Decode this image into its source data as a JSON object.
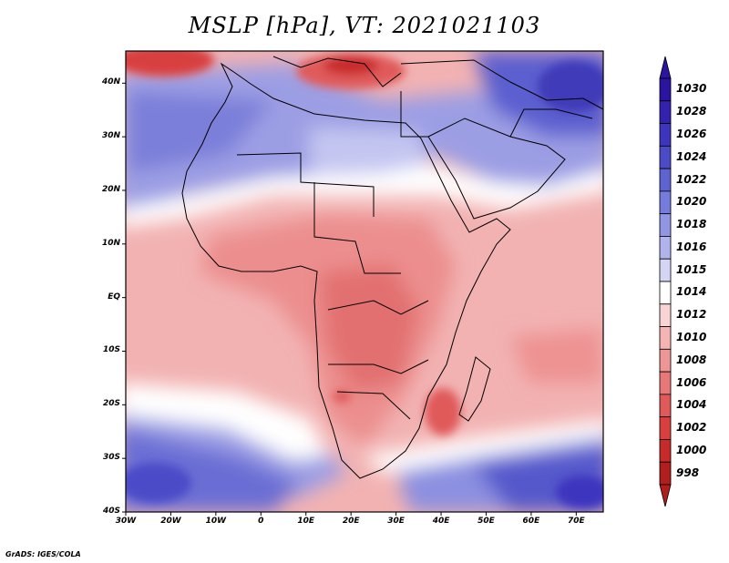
{
  "title": "MSLP [hPa], VT: 2021021103",
  "credit": "GrADS: IGES/COLA",
  "map": {
    "region": "Africa and Middle East",
    "lon_range": [
      -30,
      76
    ],
    "lat_range": [
      -40,
      46
    ],
    "lat_ticks": [
      {
        "label": "40N",
        "lat": 40
      },
      {
        "label": "30N",
        "lat": 30
      },
      {
        "label": "20N",
        "lat": 20
      },
      {
        "label": "10N",
        "lat": 10
      },
      {
        "label": "EQ",
        "lat": 0
      },
      {
        "label": "10S",
        "lat": -10
      },
      {
        "label": "20S",
        "lat": -20
      },
      {
        "label": "30S",
        "lat": -30
      },
      {
        "label": "40S",
        "lat": -40
      }
    ],
    "lon_ticks": [
      {
        "label": "30W",
        "lon": -30
      },
      {
        "label": "20W",
        "lon": -20
      },
      {
        "label": "10W",
        "lon": -10
      },
      {
        "label": "0",
        "lon": 0
      },
      {
        "label": "10E",
        "lon": 10
      },
      {
        "label": "20E",
        "lon": 20
      },
      {
        "label": "30E",
        "lon": 30
      },
      {
        "label": "40E",
        "lon": 40
      },
      {
        "label": "50E",
        "lon": 50
      },
      {
        "label": "60E",
        "lon": 60
      },
      {
        "label": "70E",
        "lon": 70
      }
    ]
  },
  "colorbar": {
    "levels": [
      {
        "label": "1030",
        "color": "#2a14a0"
      },
      {
        "label": "1028",
        "color": "#3321b0"
      },
      {
        "label": "1026",
        "color": "#3d35be"
      },
      {
        "label": "1024",
        "color": "#4b4bc8"
      },
      {
        "label": "1022",
        "color": "#5e63d2"
      },
      {
        "label": "1020",
        "color": "#767cdc"
      },
      {
        "label": "1018",
        "color": "#9196e4"
      },
      {
        "label": "1016",
        "color": "#b0b3ec"
      },
      {
        "label": "1015",
        "color": "#d4d5f5"
      },
      {
        "label": "1014",
        "color": "#ffffff"
      },
      {
        "label": "1012",
        "color": "#f8d4d4"
      },
      {
        "label": "1010",
        "color": "#f4b4b4"
      },
      {
        "label": "1008",
        "color": "#ee9696"
      },
      {
        "label": "1006",
        "color": "#e87878"
      },
      {
        "label": "1004",
        "color": "#e05a5a"
      },
      {
        "label": "1002",
        "color": "#d84040"
      },
      {
        "label": "1000",
        "color": "#c82a2a"
      },
      {
        "label": "998",
        "color": "#b01e1e"
      }
    ]
  }
}
